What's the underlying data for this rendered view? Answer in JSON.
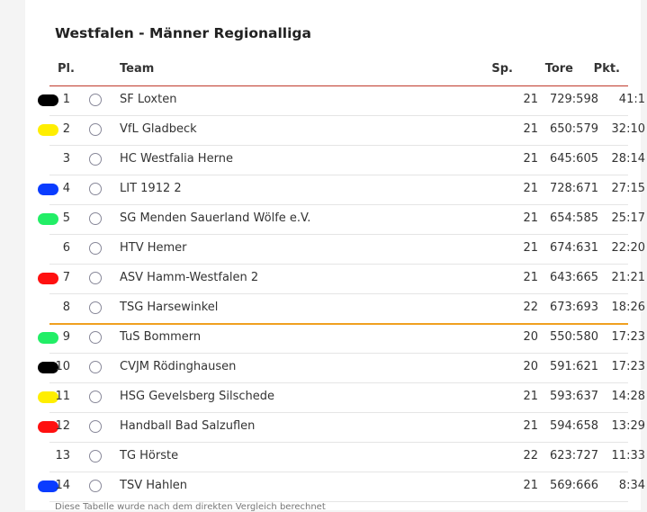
{
  "title": "Westfalen - Männer Regionalliga",
  "table": {
    "headers": [
      "Pl.",
      "Team",
      "Sp.",
      "Tore",
      "Pkt."
    ],
    "rows": [
      {
        "rank": 1,
        "team": "SF Loxten",
        "sp": 21,
        "tore": "729:598",
        "pkt": "41:1",
        "marker": "#000000"
      },
      {
        "rank": 2,
        "team": "VfL Gladbeck",
        "sp": 21,
        "tore": "650:579",
        "pkt": "32:10",
        "marker": "#ffee00"
      },
      {
        "rank": 3,
        "team": "HC Westfalia Herne",
        "sp": 21,
        "tore": "645:605",
        "pkt": "28:14"
      },
      {
        "rank": 4,
        "team": "LIT 1912 2",
        "sp": 21,
        "tore": "728:671",
        "pkt": "27:15",
        "marker": "#0a3cff"
      },
      {
        "rank": 5,
        "team": "SG Menden Sauerland Wölfe e.V.",
        "sp": 21,
        "tore": "654:585",
        "pkt": "25:17",
        "marker": "#22ee66"
      },
      {
        "rank": 6,
        "team": "HTV Hemer",
        "sp": 21,
        "tore": "674:631",
        "pkt": "22:20"
      },
      {
        "rank": 7,
        "team": "ASV Hamm-Westfalen 2",
        "sp": 21,
        "tore": "643:665",
        "pkt": "21:21",
        "marker": "#ff1010"
      },
      {
        "rank": 8,
        "team": "TSG Harsewinkel",
        "sp": 22,
        "tore": "673:693",
        "pkt": "18:26"
      },
      {
        "rank": 9,
        "team": "TuS Bommern",
        "sp": 20,
        "tore": "550:580",
        "pkt": "17:23",
        "marker": "#22ee66"
      },
      {
        "rank": 10,
        "team": "CVJM Rödinghausen",
        "sp": 20,
        "tore": "591:621",
        "pkt": "17:23",
        "marker": "#000000"
      },
      {
        "rank": 11,
        "team": "HSG Gevelsberg Silschede",
        "sp": 21,
        "tore": "593:637",
        "pkt": "14:28",
        "marker": "#ffee00"
      },
      {
        "rank": 12,
        "team": "Handball Bad Salzuflen",
        "sp": 21,
        "tore": "594:658",
        "pkt": "13:29",
        "marker": "#ff1010"
      },
      {
        "rank": 13,
        "team": "TG Hörste",
        "sp": 22,
        "tore": "623:727",
        "pkt": "11:33"
      },
      {
        "rank": 14,
        "team": "TSV Hahlen",
        "sp": 21,
        "tore": "569:666",
        "pkt": "8:34",
        "marker": "#0a3cff"
      }
    ]
  },
  "footnote": "Diese Tabelle wurde nach dem direkten Vergleich berechnet"
}
